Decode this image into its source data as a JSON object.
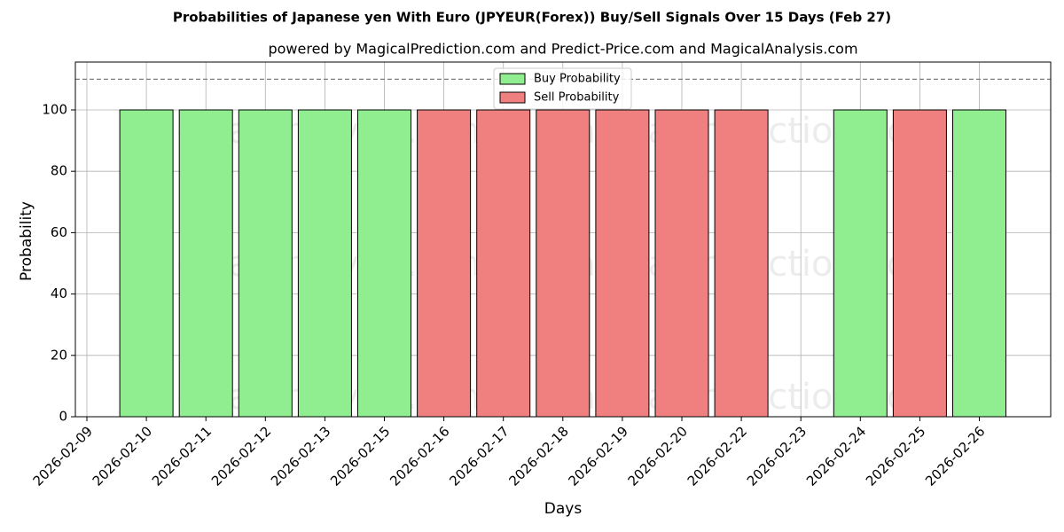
{
  "chart_data": {
    "type": "bar",
    "title": "Probabilities of Japanese yen With Euro (JPYEUR(Forex)) Buy/Sell Signals Over 15 Days (Feb 27)",
    "subtitle": "powered by MagicalPrediction.com and Predict-Price.com and MagicalAnalysis.com",
    "x_label": "Days",
    "y_label": "Probability",
    "categories": [
      "2026-02-09",
      "2026-02-10",
      "2026-02-11",
      "2026-02-12",
      "2026-02-13",
      "2026-02-15",
      "2026-02-16",
      "2026-02-17",
      "2026-02-18",
      "2026-02-19",
      "2026-02-20",
      "2026-02-22",
      "2026-02-23",
      "2026-02-24",
      "2026-02-25",
      "2026-02-26"
    ],
    "series": [
      {
        "name": "Buy Probability",
        "color": "#90ee90",
        "values": [
          null,
          100,
          100,
          100,
          100,
          100,
          null,
          null,
          null,
          null,
          null,
          null,
          null,
          100,
          null,
          100
        ]
      },
      {
        "name": "Sell Probability",
        "color": "#f08080",
        "values": [
          null,
          null,
          null,
          null,
          null,
          null,
          100,
          100,
          100,
          100,
          100,
          100,
          null,
          null,
          100,
          null
        ]
      }
    ],
    "ylim": [
      0,
      115.6
    ],
    "yticks": [
      0,
      20,
      40,
      60,
      80,
      100
    ],
    "reference_line": 110,
    "grid": true,
    "legend": "upper center",
    "watermarks": [
      "MagicalAnalysis.com",
      "MagicalPrediction.com"
    ]
  }
}
